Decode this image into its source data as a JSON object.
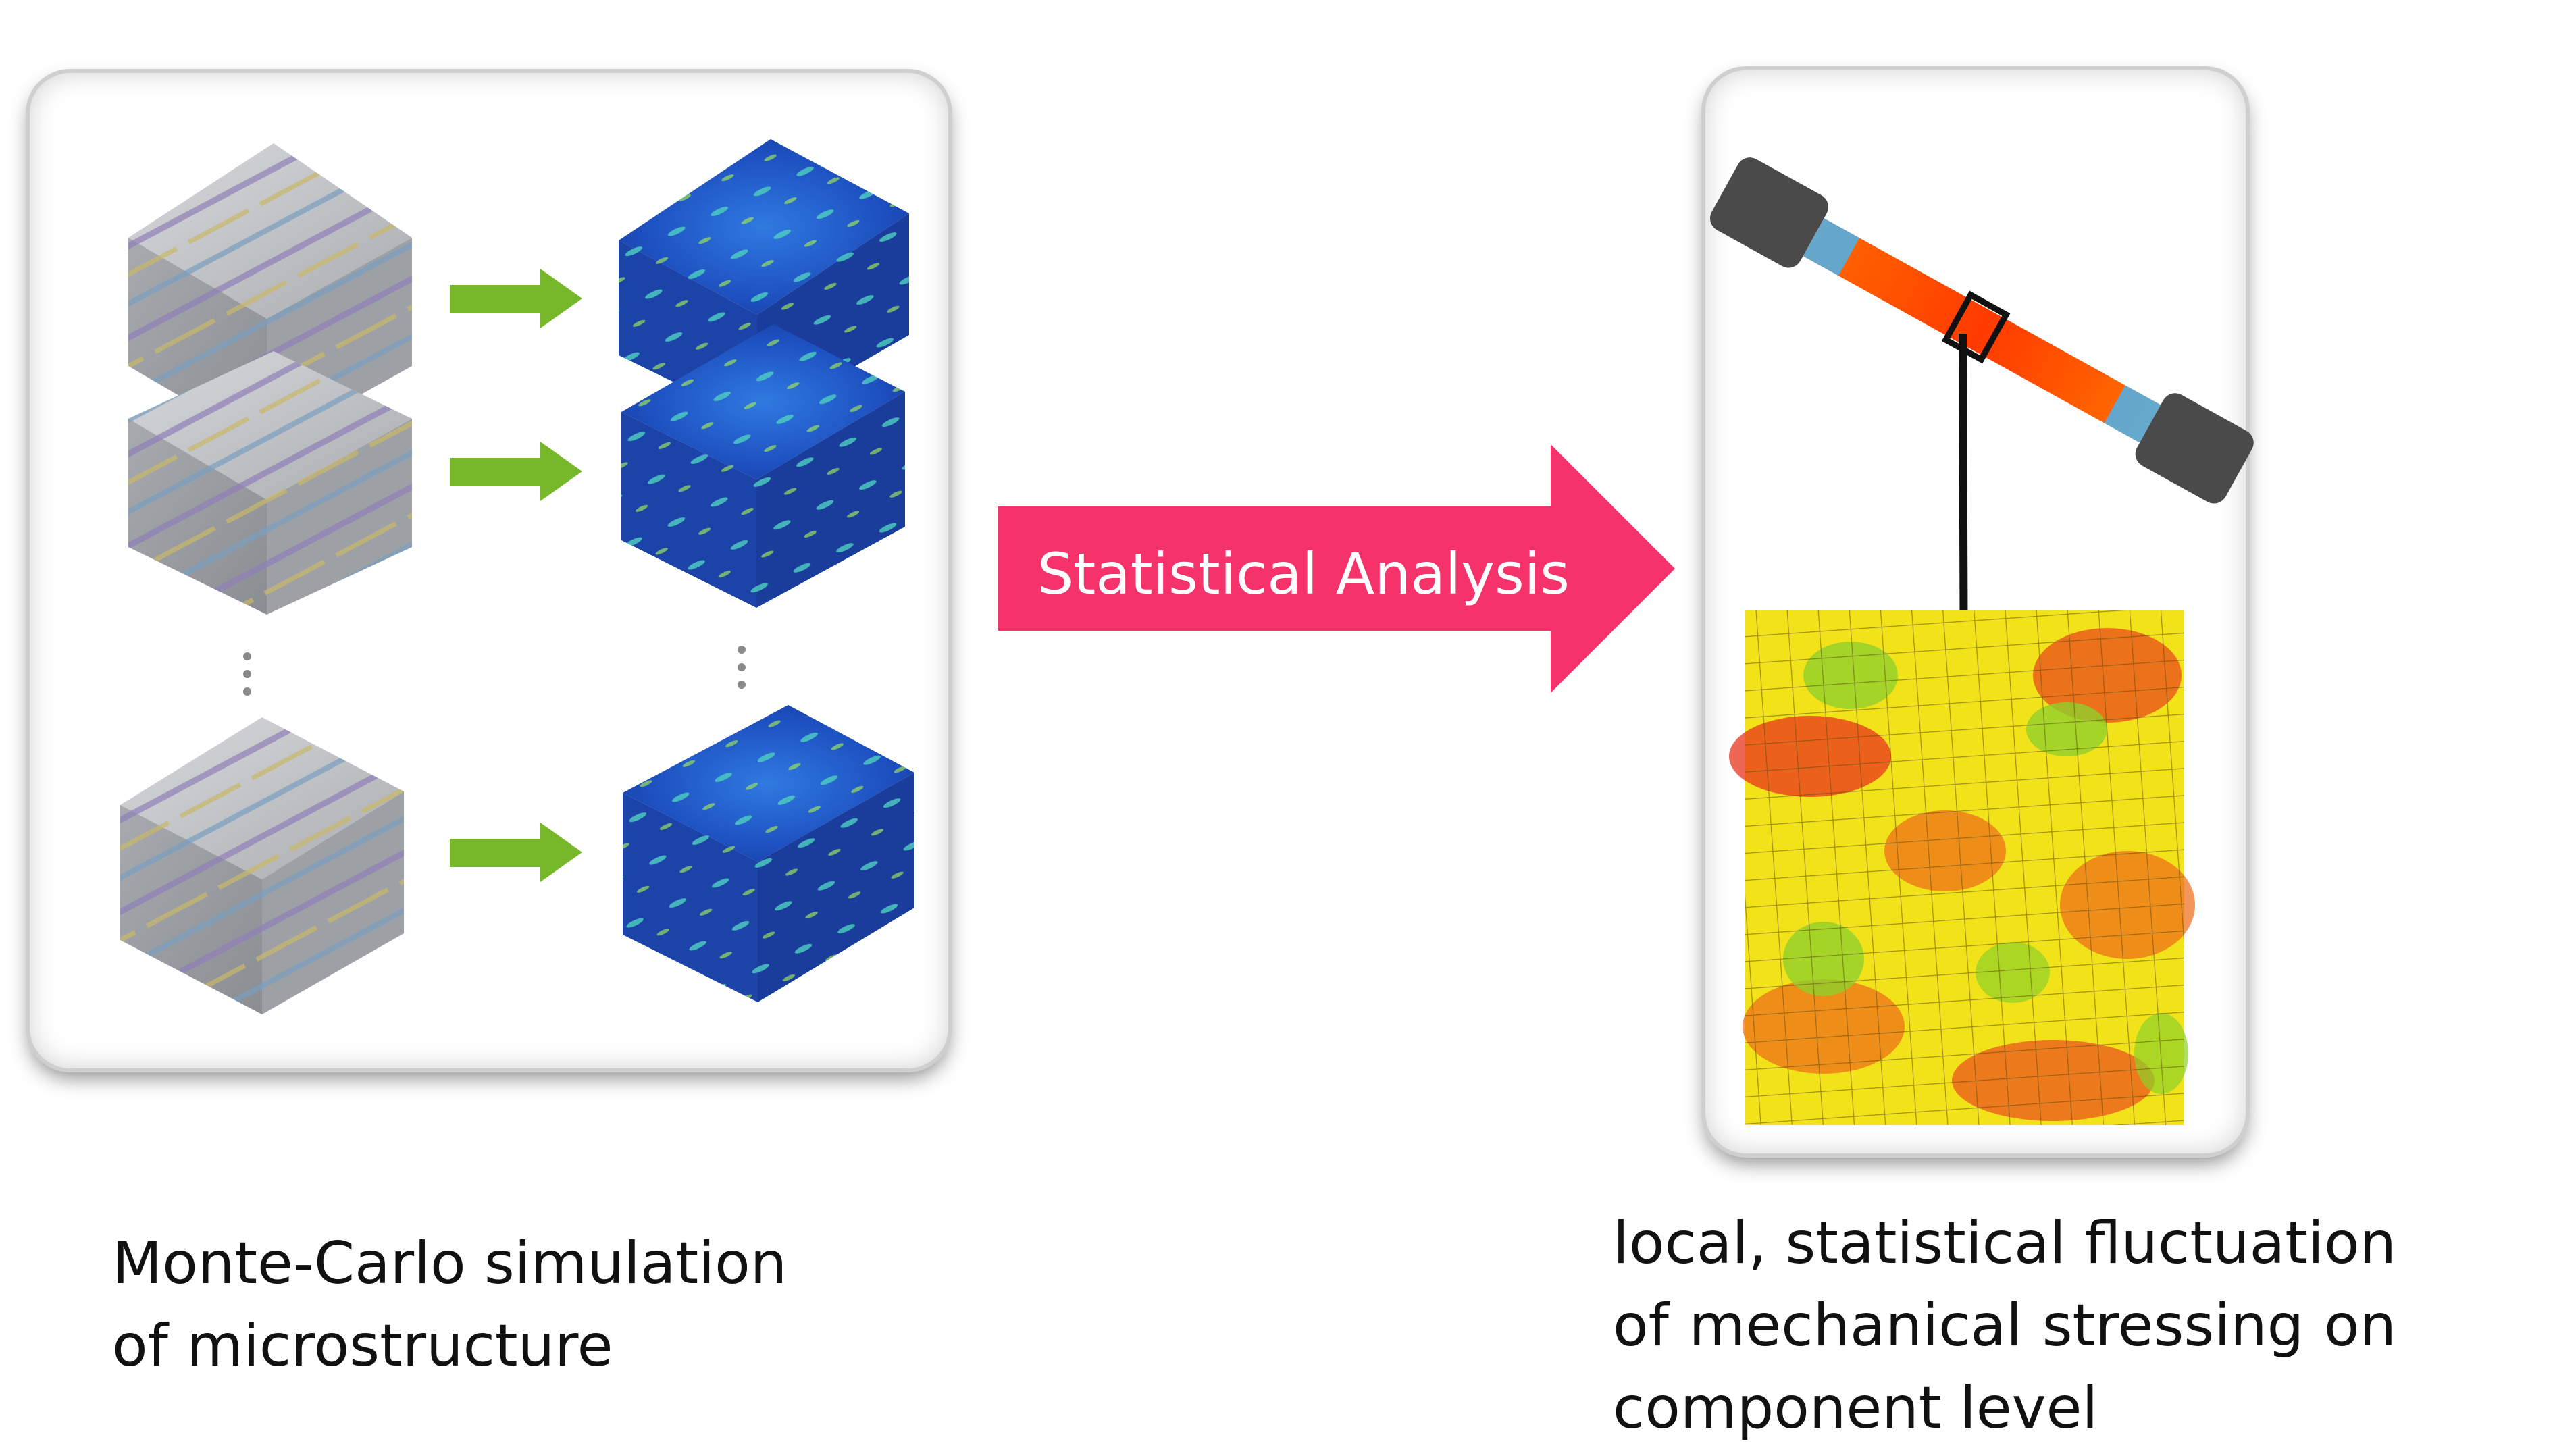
{
  "arrow": {
    "label": "Statistical Analysis",
    "color": "#f5326a"
  },
  "left_caption": {
    "line1": "Monte-Carlo simulation",
    "line2": "of microstructure"
  },
  "right_caption": {
    "line1": "local, statistical fluctuation",
    "line2": "of mechanical stressing on",
    "line3": "component level"
  },
  "colors": {
    "small_arrow": "#76b82a",
    "cube_gray": "#b9bcbf",
    "cube_blue": "#1f49b8",
    "mesh_red": "#e8341c",
    "mesh_yellow": "#f2e21a",
    "mesh_green": "#8fd12a"
  }
}
